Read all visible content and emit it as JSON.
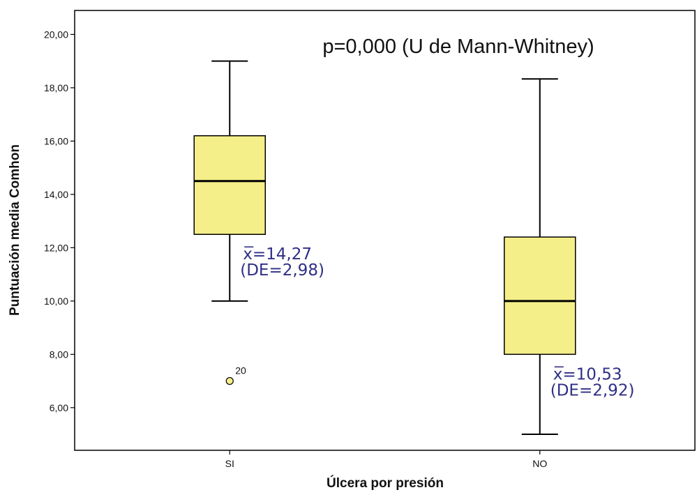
{
  "chart_data": {
    "type": "boxplot",
    "ylabel": "Puntuación media Comhon",
    "xlabel": "Úlcera por presión",
    "ylim": [
      4.4,
      20.9
    ],
    "yticks": [
      6,
      8,
      10,
      12,
      14,
      16,
      18,
      20
    ],
    "ytick_labels": [
      "6,00",
      "8,00",
      "10,00",
      "12,00",
      "14,00",
      "16,00",
      "18,00",
      "20,00"
    ],
    "grid": false,
    "categories": [
      "SI",
      "NO"
    ],
    "boxes": [
      {
        "category": "SI",
        "whisker_low": 10.0,
        "q1": 12.5,
        "median": 14.5,
        "q3": 16.2,
        "whisker_high": 19.0,
        "outliers": [
          {
            "value": 7.0,
            "label": "20"
          }
        ],
        "mean_label": "x=14,27",
        "sd_label": "(DE=2,98)"
      },
      {
        "category": "NO",
        "whisker_low": 5.0,
        "q1": 8.0,
        "median": 10.0,
        "q3": 12.4,
        "whisker_high": 18.33,
        "outliers": [],
        "mean_label": "x=10,53",
        "sd_label": "(DE=2,92)"
      }
    ],
    "annotation": "p=0,000 (U de Mann-Whitney)",
    "box_color": "#f5ef8a",
    "box_edge_color": "#000000",
    "annotation_color": "#2f2f86"
  }
}
